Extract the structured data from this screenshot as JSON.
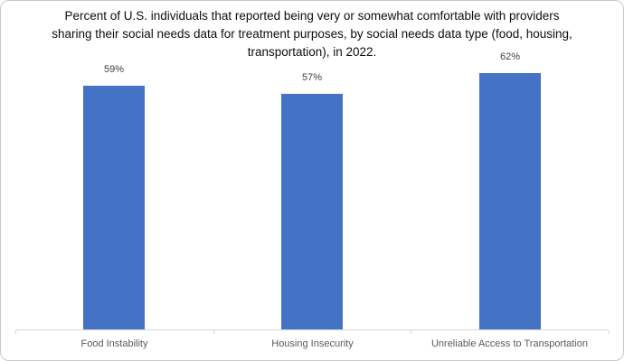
{
  "header": {
    "title_lines": [
      "Percent of U.S. individuals that reported being very or somewhat comfortable with providers",
      "sharing their social needs data for treatment purposes, by social needs data type (food, housing,",
      "transportation), in 2022."
    ]
  },
  "chart_data": {
    "type": "bar",
    "title": "Percent of U.S. individuals that reported being very or somewhat comfortable with providers sharing their social needs data for treatment purposes, by social needs data type (food, housing, transportation), in 2022.",
    "categories": [
      "Food Instability",
      "Housing Insecurity",
      "Unreliable Access to Transportation"
    ],
    "values": [
      59,
      57,
      62
    ],
    "data_labels": [
      "59%",
      "57%",
      "62%"
    ],
    "xlabel": "",
    "ylabel": "",
    "ylim": [
      0,
      70
    ],
    "grid": false,
    "legend": false,
    "y_axis_visible": false,
    "colors": {
      "bar": "#4472C4",
      "axis": "#d9d9d9",
      "category_label": "#595959",
      "value_label": "#404040",
      "title": "#0d0d0d"
    }
  }
}
